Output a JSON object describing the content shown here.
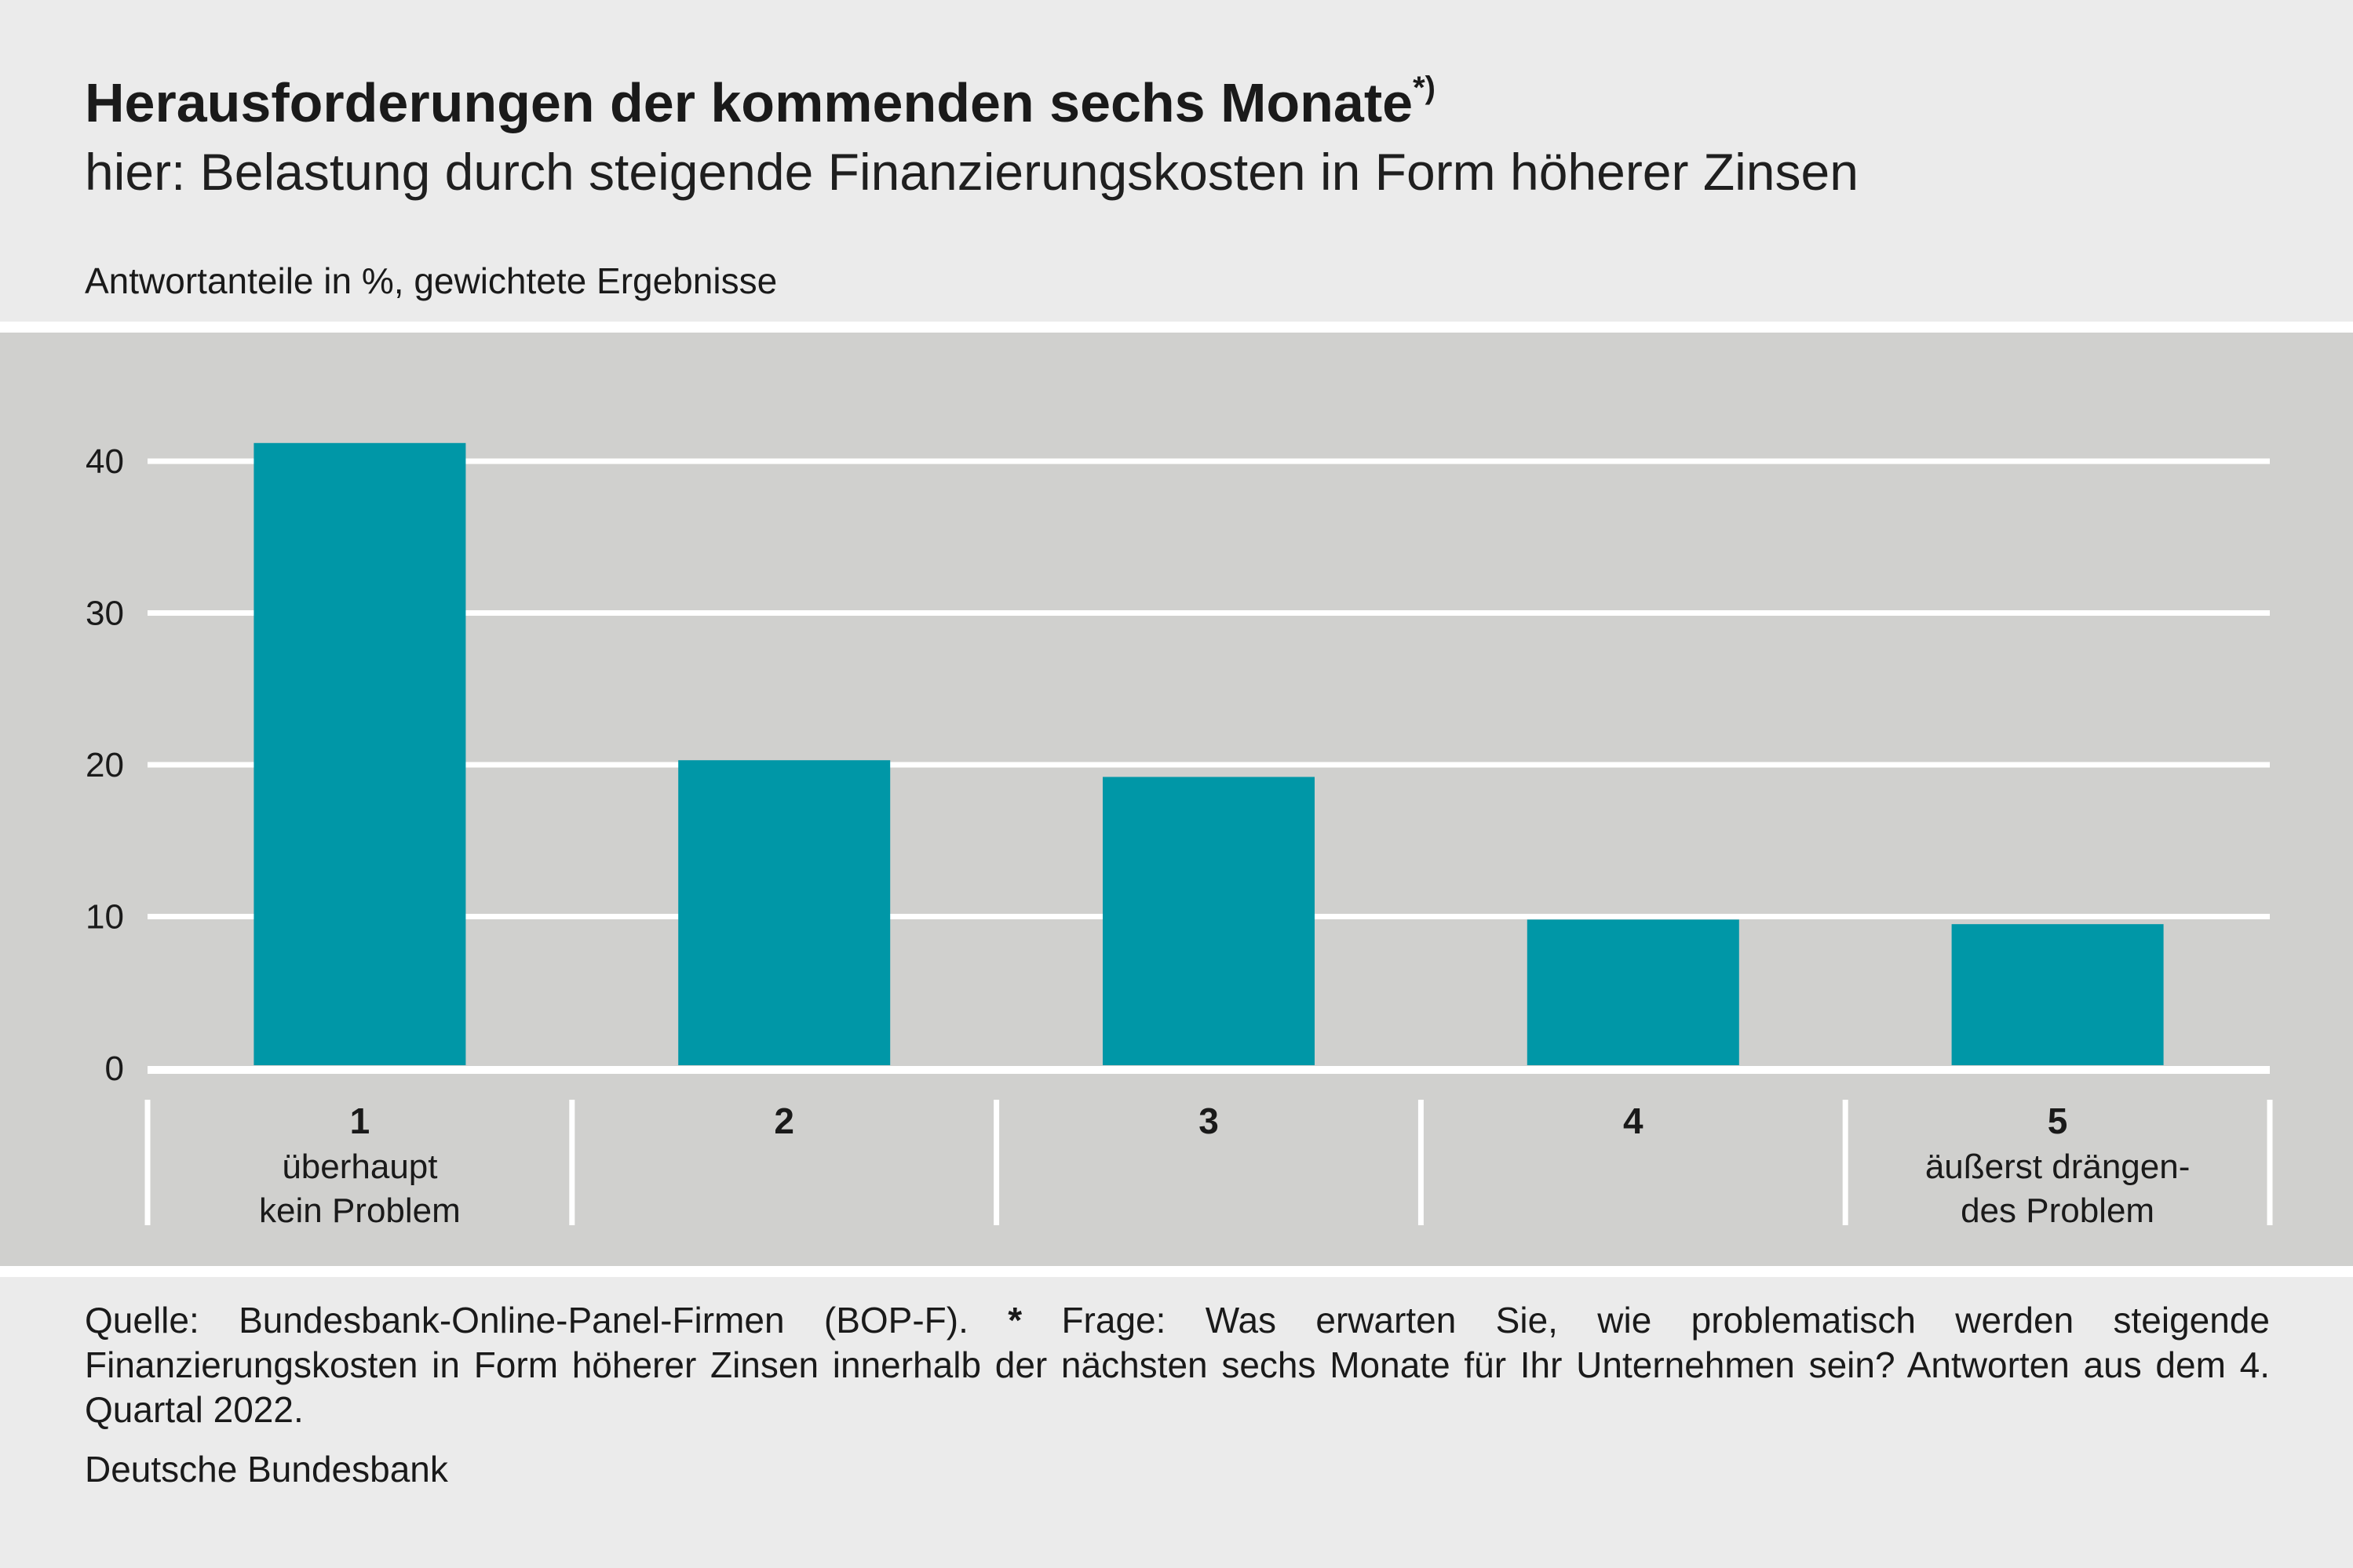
{
  "header": {
    "title": "Herausforderungen der kommenden sechs Monate",
    "title_marker": "*)",
    "subtitle": "hier: Belastung durch steigende Finanzierungskosten in Form höherer Zinsen",
    "unit_note": "Antwortanteile in %, gewichtete Ergebnisse"
  },
  "chart_data": {
    "type": "bar",
    "categories": [
      "1",
      "2",
      "3",
      "4",
      "5"
    ],
    "category_descriptions": [
      [
        "überhaupt",
        "kein Problem"
      ],
      [],
      [],
      [],
      [
        "äußerst drängen-",
        "des Problem"
      ]
    ],
    "values": [
      41.2,
      20.3,
      19.2,
      9.8,
      9.5
    ],
    "ylim": [
      0,
      45
    ],
    "yticks": [
      0,
      10,
      20,
      30,
      40
    ],
    "grid": true,
    "colors": {
      "bar": "#0097a7",
      "grid": "#ffffff",
      "panel": "#d0d0ce"
    }
  },
  "footer": {
    "source_label": "Quelle: Bundesbank-Online-Panel-Firmen (BOP-F).",
    "note_marker": "*",
    "note_text": "Frage: Was erwarten Sie, wie problematisch werden steigende Finanzierungskosten in Form höherer Zinsen innerhalb der nächsten sechs Monate für Ihr Unternehmen sein? Antworten aus dem 4. Quartal 2022.",
    "publisher": "Deutsche Bundesbank"
  }
}
